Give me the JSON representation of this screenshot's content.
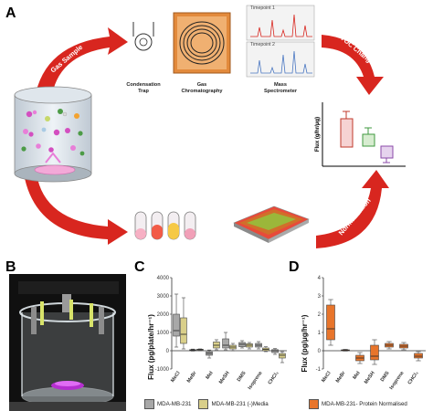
{
  "panels": {
    "a": "A",
    "b": "B",
    "c": "C",
    "d": "D"
  },
  "workflow": {
    "gas_sample": "Gas Sample",
    "voc_change": "VOC Change",
    "cells_media": "Cells/Media",
    "normalisation": "Normalisation",
    "condensation_trap": [
      "Condensation",
      "Trap"
    ],
    "gas_chromatography": [
      "Gas",
      "Chromatography"
    ],
    "mass_spectrometer": [
      "Mass",
      "Spectrometer"
    ],
    "timepoint1": "Timepoint 1",
    "timepoint2": "Timepoint 2",
    "flux_unit_label": "Flux (g/hr/μg)"
  },
  "colors": {
    "red_arrow": "#d8261f",
    "mda": "#a8a8a8",
    "media": "#d9cf8a",
    "protein": "#e8752b"
  },
  "chart_data": [
    {
      "type": "boxplot",
      "panel": "C",
      "ylabel": "Flux (pg/plate/hr⁻¹)",
      "ylim": [
        -1000,
        4000
      ],
      "yticks": [
        -1000,
        0,
        1000,
        2000,
        3000,
        4000
      ],
      "categories": [
        "MeCl",
        "MeBr",
        "MeI",
        "MeSH",
        "DMS",
        "Isoprene",
        "CHCl₃"
      ],
      "series": [
        {
          "name": "MDA-MB-231",
          "color": "#a8a8a8",
          "boxes": [
            {
              "min": 200,
              "q1": 800,
              "median": 1100,
              "q3": 2000,
              "max": 3100
            },
            {
              "min": -20,
              "q1": 0,
              "median": 30,
              "q3": 60,
              "max": 90
            },
            {
              "min": -400,
              "q1": -250,
              "median": -150,
              "q3": -60,
              "max": 40
            },
            {
              "min": 50,
              "q1": 150,
              "median": 300,
              "q3": 650,
              "max": 1000
            },
            {
              "min": 150,
              "q1": 220,
              "median": 350,
              "q3": 450,
              "max": 550
            },
            {
              "min": 100,
              "q1": 200,
              "median": 300,
              "q3": 400,
              "max": 500
            },
            {
              "min": -200,
              "q1": -100,
              "median": 0,
              "q3": 60,
              "max": 120
            }
          ]
        },
        {
          "name": "MDA-MB-231 (-)Media",
          "color": "#d9cf8a",
          "boxes": [
            {
              "min": 100,
              "q1": 400,
              "median": 900,
              "q3": 1800,
              "max": 2900
            },
            {
              "min": 0,
              "q1": 30,
              "median": 60,
              "q3": 80,
              "max": 100
            },
            {
              "min": 50,
              "q1": 150,
              "median": 300,
              "q3": 480,
              "max": 600
            },
            {
              "min": 0,
              "q1": 100,
              "median": 200,
              "q3": 300,
              "max": 400
            },
            {
              "min": 100,
              "q1": 200,
              "median": 300,
              "q3": 380,
              "max": 450
            },
            {
              "min": -50,
              "q1": 0,
              "median": 80,
              "q3": 150,
              "max": 220
            },
            {
              "min": -650,
              "q1": -400,
              "median": -250,
              "q3": -150,
              "max": -50
            }
          ]
        }
      ],
      "legend": [
        "MDA-MB-231",
        "MDA-MB-231 (-)Media"
      ]
    },
    {
      "type": "boxplot",
      "panel": "D",
      "ylabel": "Flux (pg/μg/hr⁻¹)",
      "ylim": [
        -1,
        4
      ],
      "yticks": [
        -1,
        0,
        1,
        2,
        3,
        4
      ],
      "categories": [
        "MeCl",
        "MeBr",
        "MeI",
        "MeSH",
        "DMS",
        "Isoprene",
        "CHCl₃"
      ],
      "series": [
        {
          "name": "MDA-MB-231- Protein Normalised",
          "color": "#e8752b",
          "boxes": [
            {
              "min": 0.3,
              "q1": 0.6,
              "median": 1.2,
              "q3": 2.5,
              "max": 2.8
            },
            {
              "min": -0.02,
              "q1": 0.0,
              "median": 0.02,
              "q3": 0.05,
              "max": 0.08
            },
            {
              "min": -0.7,
              "q1": -0.55,
              "median": -0.4,
              "q3": -0.25,
              "max": -0.1
            },
            {
              "min": -0.75,
              "q1": -0.5,
              "median": -0.3,
              "q3": 0.3,
              "max": 0.6
            },
            {
              "min": 0.1,
              "q1": 0.2,
              "median": 0.3,
              "q3": 0.4,
              "max": 0.5
            },
            {
              "min": 0.05,
              "q1": 0.15,
              "median": 0.25,
              "q3": 0.35,
              "max": 0.45
            },
            {
              "min": -0.55,
              "q1": -0.4,
              "median": -0.3,
              "q3": -0.15,
              "max": -0.05
            }
          ]
        }
      ],
      "legend": [
        "MDA-MB-231- Protein Normalised"
      ]
    }
  ]
}
